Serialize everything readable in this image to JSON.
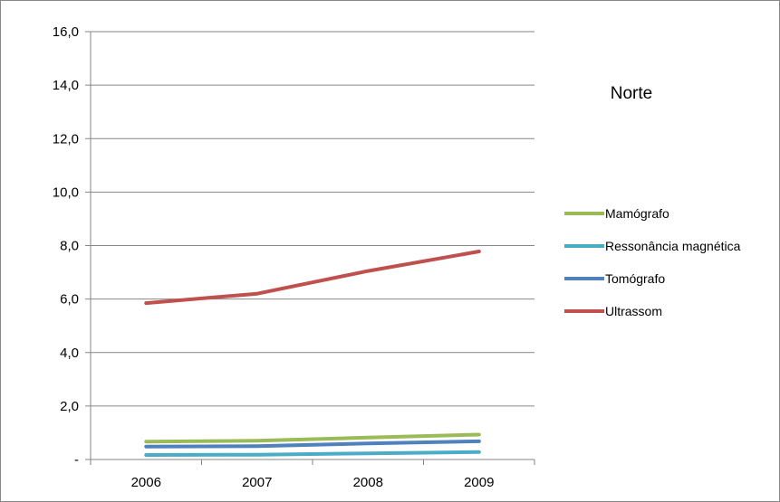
{
  "chart_data": {
    "type": "line",
    "title": "Norte",
    "xlabel": "",
    "ylabel": "",
    "categories": [
      "2006",
      "2007",
      "2008",
      "2009"
    ],
    "ylim": [
      0,
      16
    ],
    "yticks": [
      0,
      2,
      4,
      6,
      8,
      10,
      12,
      14,
      16
    ],
    "ytick_labels": [
      "-",
      "2,0",
      "4,0",
      "6,0",
      "8,0",
      "10,0",
      "12,0",
      "14,0",
      "16,0"
    ],
    "grid": true,
    "legend_position": "right",
    "series": [
      {
        "name": "Mamógrafo",
        "color": "#9BBB59",
        "values": [
          0.67,
          0.7,
          0.82,
          0.93
        ]
      },
      {
        "name": "Ressonância magnética",
        "color": "#4BACC6",
        "values": [
          0.17,
          0.18,
          0.23,
          0.28
        ]
      },
      {
        "name": "Tomógrafo",
        "color": "#4F81BD",
        "values": [
          0.48,
          0.5,
          0.6,
          0.68
        ]
      },
      {
        "name": "Ultrassom",
        "color": "#C0504D",
        "values": [
          5.85,
          6.2,
          7.05,
          7.78
        ]
      }
    ]
  }
}
